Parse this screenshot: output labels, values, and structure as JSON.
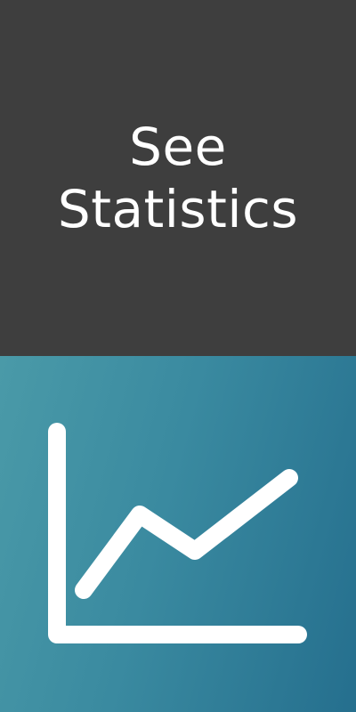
{
  "tile": {
    "title_line1": "See",
    "title_line2": "Statistics",
    "icon": "line-chart-icon",
    "colors": {
      "top_background": "#3e3e3e",
      "text": "#ffffff",
      "gradient_start": "#4a9aa8",
      "gradient_end": "#256f8e",
      "icon_stroke": "#ffffff"
    }
  }
}
